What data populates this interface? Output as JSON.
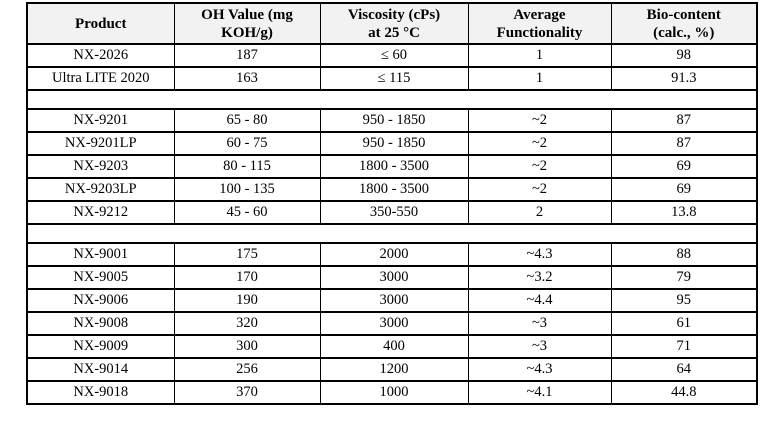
{
  "colors": {
    "header_bg": "#f2f2f2",
    "border": "#000000",
    "text": "#000000",
    "body_bg": "#ffffff"
  },
  "table": {
    "headers": [
      {
        "key": "product",
        "lines": [
          "Product"
        ]
      },
      {
        "key": "oh_value",
        "lines": [
          "OH Value (mg",
          "KOH/g)"
        ]
      },
      {
        "key": "viscosity",
        "lines": [
          "Viscosity (cPs)",
          "at 25 °C"
        ]
      },
      {
        "key": "functionality",
        "lines": [
          "Average",
          "Functionality"
        ]
      },
      {
        "key": "bio_content",
        "lines": [
          "Bio-content",
          "(calc., %)"
        ]
      }
    ],
    "column_keys": [
      "product",
      "oh_value",
      "viscosity",
      "functionality",
      "bio_content"
    ],
    "sections": [
      {
        "rows": [
          {
            "product": "NX-2026",
            "oh_value": "187",
            "viscosity": "≤ 60",
            "functionality": "1",
            "bio_content": "98"
          },
          {
            "product": "Ultra LITE 2020",
            "oh_value": "163",
            "viscosity": "≤ 115",
            "functionality": "1",
            "bio_content": "91.3"
          }
        ]
      },
      {
        "rows": [
          {
            "product": "NX-9201",
            "oh_value": "65 - 80",
            "viscosity": "950 - 1850",
            "functionality": "~2",
            "bio_content": "87"
          },
          {
            "product": "NX-9201LP",
            "oh_value": "60 - 75",
            "viscosity": "950 - 1850",
            "functionality": "~2",
            "bio_content": "87"
          },
          {
            "product": "NX-9203",
            "oh_value": "80 - 115",
            "viscosity": "1800 - 3500",
            "functionality": "~2",
            "bio_content": "69"
          },
          {
            "product": "NX-9203LP",
            "oh_value": "100 - 135",
            "viscosity": "1800 - 3500",
            "functionality": "~2",
            "bio_content": "69"
          },
          {
            "product": "NX-9212",
            "oh_value": "45 - 60",
            "viscosity": "350-550",
            "functionality": "2",
            "bio_content": "13.8"
          }
        ]
      },
      {
        "rows": [
          {
            "product": "NX-9001",
            "oh_value": "175",
            "viscosity": "2000",
            "functionality": "~4.3",
            "bio_content": "88"
          },
          {
            "product": "NX-9005",
            "oh_value": "170",
            "viscosity": "3000",
            "functionality": "~3.2",
            "bio_content": "79"
          },
          {
            "product": "NX-9006",
            "oh_value": "190",
            "viscosity": "3000",
            "functionality": "~4.4",
            "bio_content": "95"
          },
          {
            "product": "NX-9008",
            "oh_value": "320",
            "viscosity": "3000",
            "functionality": "~3",
            "bio_content": "61"
          },
          {
            "product": "NX-9009",
            "oh_value": "300",
            "viscosity": "400",
            "functionality": "~3",
            "bio_content": "71"
          },
          {
            "product": "NX-9014",
            "oh_value": "256",
            "viscosity": "1200",
            "functionality": "~4.3",
            "bio_content": "64"
          },
          {
            "product": "NX-9018",
            "oh_value": "370",
            "viscosity": "1000",
            "functionality": "~4.1",
            "bio_content": "44.8"
          }
        ]
      }
    ]
  }
}
